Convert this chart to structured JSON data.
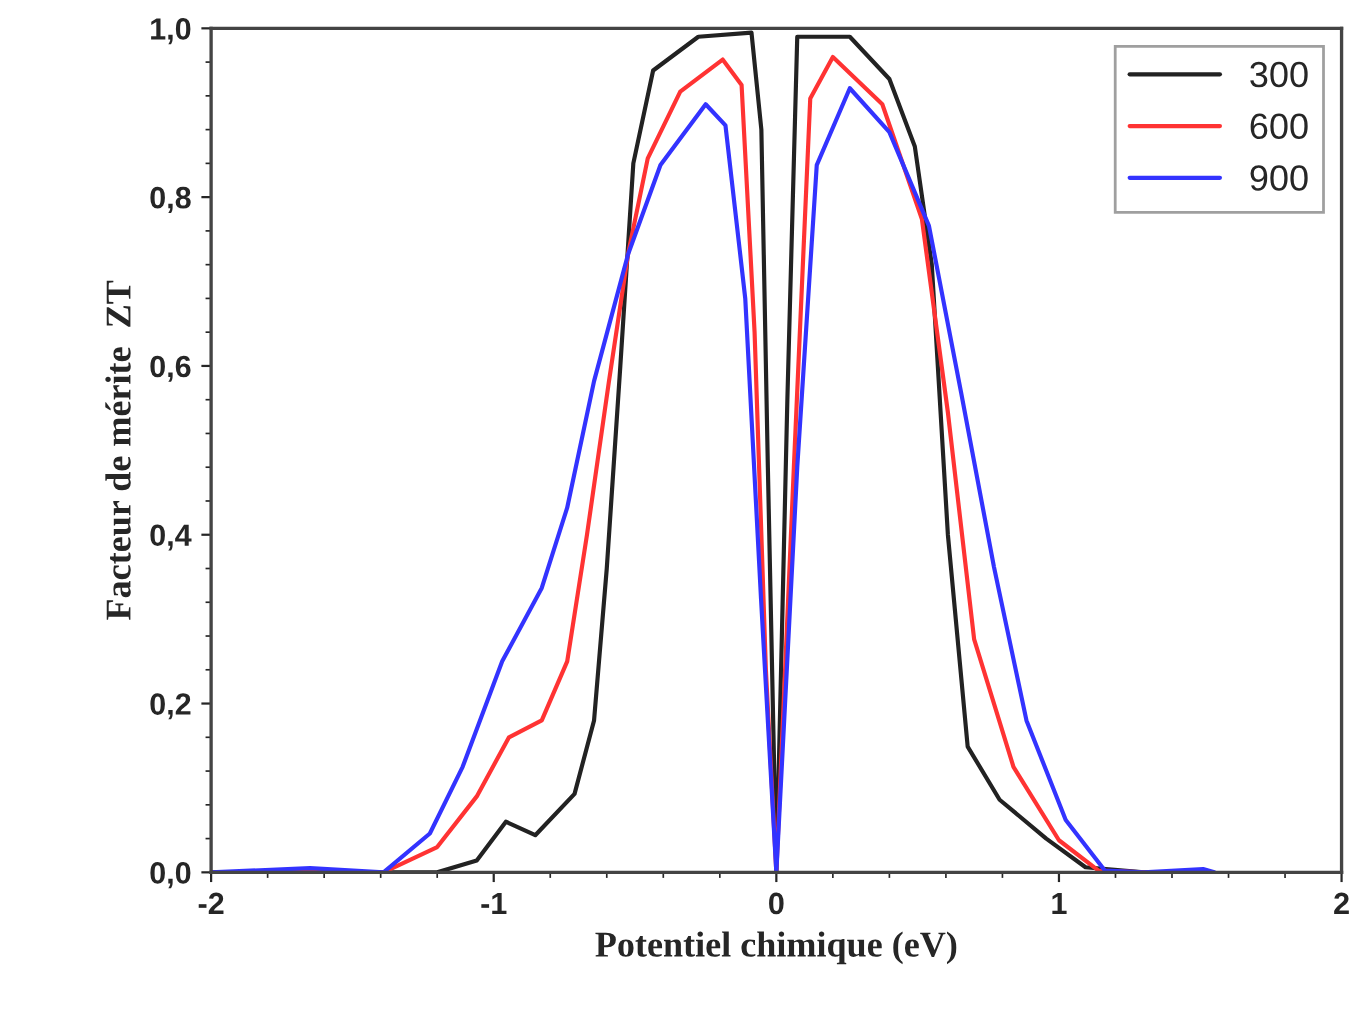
{
  "chart_data": {
    "type": "line",
    "xlabel": "Potentiel chimique (eV)",
    "ylabel": "Facteur de mérite  ZT",
    "xlim": [
      -2,
      2
    ],
    "ylim": [
      0,
      1
    ],
    "xticks": [
      -2,
      -1,
      0,
      1,
      2
    ],
    "yticks": [
      {
        "value": 0,
        "label": "0,0"
      },
      {
        "value": 0.2,
        "label": "0,2"
      },
      {
        "value": 0.4,
        "label": "0,4"
      },
      {
        "value": 0.6,
        "label": "0,6"
      },
      {
        "value": 0.8,
        "label": "0,8"
      },
      {
        "value": 1,
        "label": "1,0"
      }
    ],
    "grid": false,
    "legend": "top right",
    "marker": "none",
    "line_style": "solid",
    "series": [
      {
        "name": "300",
        "color": "#222222",
        "x": [
          -2,
          -1.6,
          -1.2,
          -1.06,
          -0.957,
          -0.853,
          -0.714,
          -0.645,
          -0.6,
          -0.552,
          -0.506,
          -0.436,
          -0.276,
          -0.088,
          -0.053,
          -0.03,
          0,
          0.039,
          0.074,
          0.26,
          0.4,
          0.49,
          0.55,
          0.607,
          0.677,
          0.79,
          0.955,
          1.094,
          1.3,
          1.5
        ],
        "values": [
          0,
          0,
          0,
          0.014,
          0.06,
          0.044,
          0.093,
          0.18,
          0.36,
          0.6,
          0.84,
          0.95,
          0.99,
          0.995,
          0.88,
          0.48,
          0,
          0.56,
          0.99,
          0.99,
          0.94,
          0.86,
          0.72,
          0.4,
          0.149,
          0.086,
          0.04,
          0.006,
          0,
          0
        ]
      },
      {
        "name": "600",
        "color": "#ff3333",
        "x": [
          -2,
          -1.65,
          -1.39,
          -1.2,
          -1.06,
          -0.946,
          -0.83,
          -0.74,
          -0.67,
          -0.593,
          -0.524,
          -0.455,
          -0.34,
          -0.19,
          -0.123,
          -0.077,
          -0.037,
          0,
          0.062,
          0.12,
          0.2,
          0.375,
          0.515,
          0.607,
          0.7,
          0.839,
          1.0,
          1.14,
          1.3,
          1.5
        ],
        "values": [
          0,
          null,
          0,
          0.03,
          0.09,
          0.16,
          0.18,
          0.25,
          0.4,
          0.58,
          0.734,
          0.846,
          0.925,
          0.963,
          0.933,
          0.64,
          0.24,
          0,
          0.48,
          0.917,
          0.966,
          0.91,
          0.774,
          0.545,
          0.276,
          0.125,
          0.038,
          0.002,
          0,
          0
        ]
      },
      {
        "name": "900",
        "color": "#3333ff",
        "x": [
          -2,
          -1.65,
          -1.39,
          -1.226,
          -1.11,
          -0.97,
          -0.83,
          -0.74,
          -0.645,
          -0.524,
          -0.41,
          -0.25,
          -0.18,
          -0.11,
          -0.054,
          0,
          0.074,
          0.143,
          0.26,
          0.4,
          0.54,
          0.654,
          0.77,
          0.885,
          1.024,
          1.163,
          1.3,
          1.51,
          1.55
        ],
        "values": [
          0,
          0.005,
          0,
          0.046,
          0.125,
          0.25,
          0.337,
          0.432,
          0.582,
          0.733,
          0.838,
          0.91,
          0.885,
          0.68,
          0.323,
          0,
          0.48,
          0.838,
          0.929,
          0.877,
          0.766,
          0.568,
          0.362,
          0.18,
          0.062,
          0.002,
          0,
          0.004,
          0
        ]
      }
    ]
  }
}
